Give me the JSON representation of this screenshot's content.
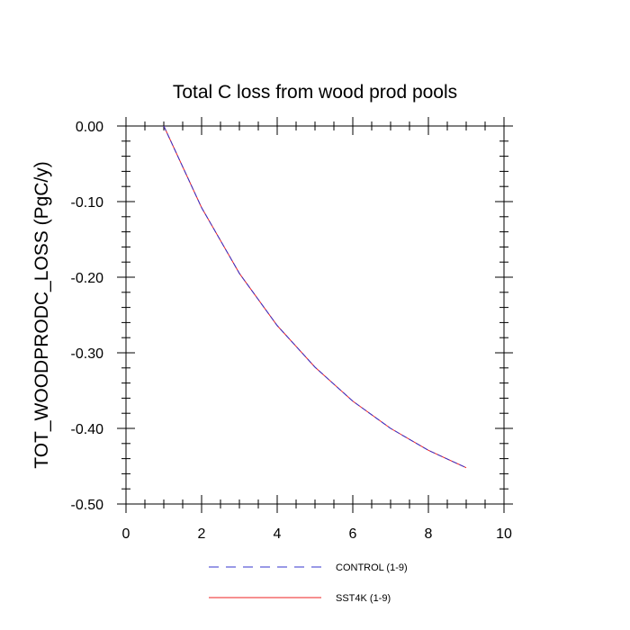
{
  "chart_data": {
    "type": "line",
    "title": "Total C loss from wood prod pools",
    "xlabel": "",
    "ylabel": "TOT_WOODPRODC_LOSS  (PgC/y)",
    "xlim": [
      0,
      10
    ],
    "ylim": [
      -0.5,
      0.0
    ],
    "x_ticks": [
      0,
      2,
      4,
      6,
      8,
      10
    ],
    "x_tick_labels": [
      "0",
      "2",
      "4",
      "6",
      "8",
      "10"
    ],
    "y_ticks": [
      0.0,
      -0.1,
      -0.2,
      -0.3,
      -0.4,
      -0.5
    ],
    "y_tick_labels": [
      "0.00",
      "-0.10",
      "-0.20",
      "-0.30",
      "-0.40",
      "-0.50"
    ],
    "x_minor_step": 0.5,
    "y_minor_step": 0.02,
    "grid": false,
    "legend_position": "bottom",
    "series": [
      {
        "name": "CONTROL (1-9)",
        "color": "#3333cc",
        "style": "dashed",
        "x": [
          1,
          2,
          3,
          4,
          5,
          6,
          7,
          8,
          9
        ],
        "y": [
          0.0,
          -0.108,
          -0.195,
          -0.264,
          -0.319,
          -0.364,
          -0.4,
          -0.429,
          -0.452
        ]
      },
      {
        "name": "SST4K (1-9)",
        "color": "#ee2222",
        "style": "solid",
        "x": [
          1,
          2,
          3,
          4,
          5,
          6,
          7,
          8,
          9
        ],
        "y": [
          0.0,
          -0.108,
          -0.195,
          -0.264,
          -0.319,
          -0.364,
          -0.4,
          -0.429,
          -0.452
        ]
      }
    ]
  }
}
